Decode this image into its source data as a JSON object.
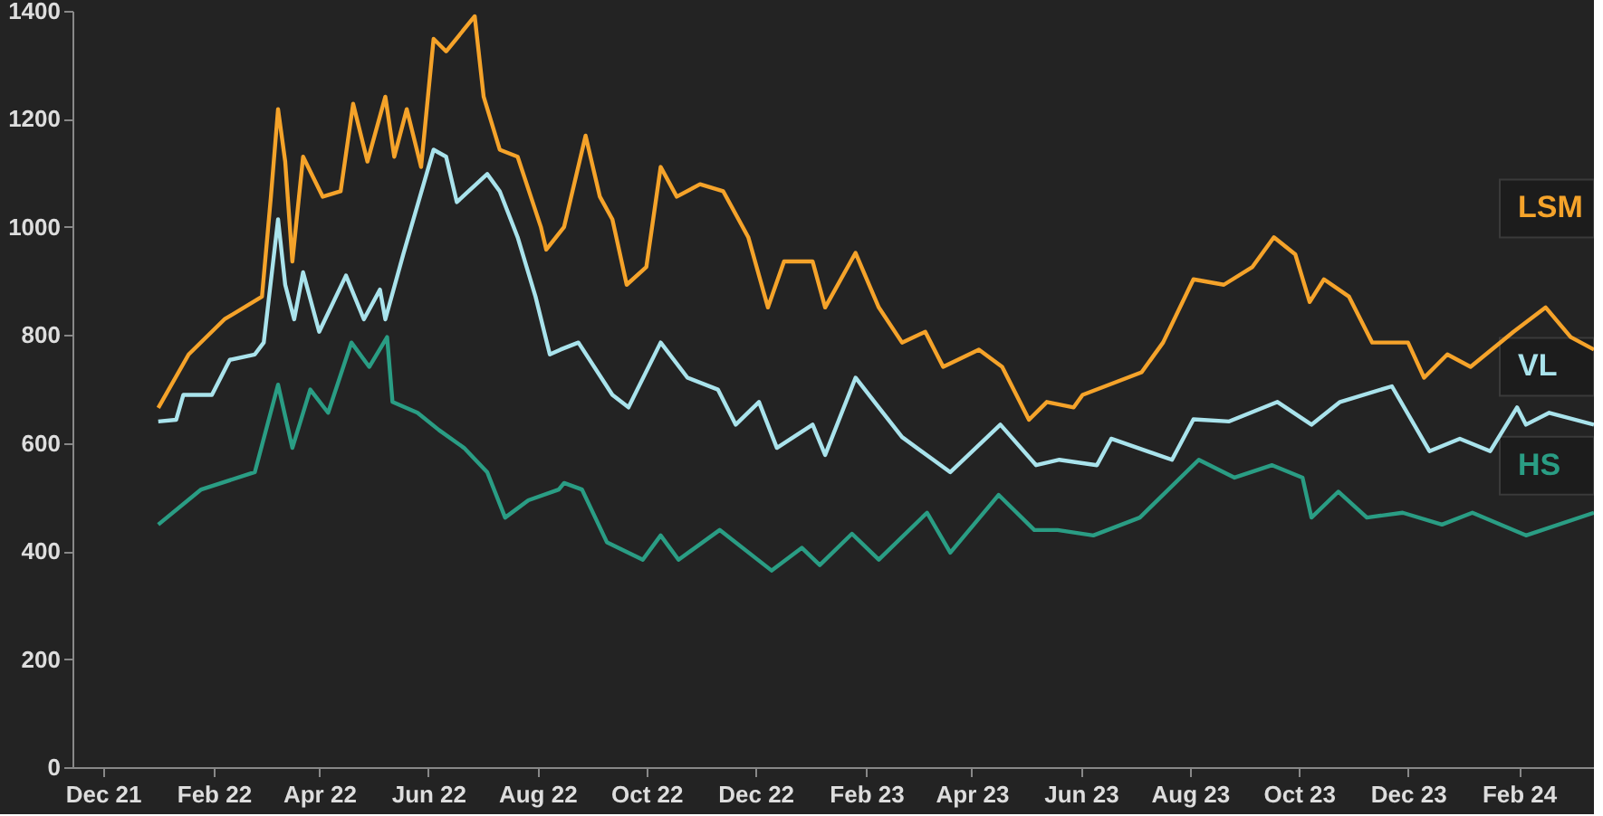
{
  "chart_data": {
    "type": "line",
    "xlim": [
      "2021-11-14",
      "2024-03-14"
    ],
    "ylim": [
      0,
      1400
    ],
    "yticks": [
      0,
      200,
      400,
      600,
      800,
      1000,
      1200,
      1400
    ],
    "xticks": [
      {
        "value": "2021-12-01",
        "label": "Dec 21"
      },
      {
        "value": "2022-02-01",
        "label": "Feb 22"
      },
      {
        "value": "2022-04-01",
        "label": "Apr 22"
      },
      {
        "value": "2022-06-01",
        "label": "Jun 22"
      },
      {
        "value": "2022-08-01",
        "label": "Aug 22"
      },
      {
        "value": "2022-10-01",
        "label": "Oct 22"
      },
      {
        "value": "2022-12-01",
        "label": "Dec 22"
      },
      {
        "value": "2023-02-01",
        "label": "Feb 23"
      },
      {
        "value": "2023-04-01",
        "label": "Apr 23"
      },
      {
        "value": "2023-06-01",
        "label": "Jun 23"
      },
      {
        "value": "2023-08-01",
        "label": "Aug 23"
      },
      {
        "value": "2023-10-01",
        "label": "Oct 23"
      },
      {
        "value": "2023-12-01",
        "label": "Dec 23"
      },
      {
        "value": "2024-02-01",
        "label": "Feb 24"
      }
    ],
    "grid": false,
    "marker": "none",
    "line_style": "solid",
    "series": [
      {
        "name": "LSM",
        "color": "#f5a32a",
        "x": [
          "2022-01-01",
          "2022-01-18",
          "2022-02-07",
          "2022-02-28",
          "2022-03-05",
          "2022-03-09",
          "2022-03-13",
          "2022-03-17",
          "2022-03-23",
          "2022-04-03",
          "2022-04-13",
          "2022-04-20",
          "2022-04-28",
          "2022-05-08",
          "2022-05-13",
          "2022-05-20",
          "2022-05-28",
          "2022-06-04",
          "2022-06-11",
          "2022-06-27",
          "2022-07-02",
          "2022-07-11",
          "2022-07-21",
          "2022-08-03",
          "2022-08-06",
          "2022-08-16",
          "2022-08-28",
          "2022-09-05",
          "2022-09-12",
          "2022-09-20",
          "2022-10-01",
          "2022-10-09",
          "2022-10-18",
          "2022-10-31",
          "2022-11-13",
          "2022-11-27",
          "2022-12-08",
          "2022-12-17",
          "2023-01-02",
          "2023-01-09",
          "2023-01-26",
          "2023-02-08",
          "2023-02-21",
          "2023-03-06",
          "2023-03-16",
          "2023-04-05",
          "2023-04-18",
          "2023-05-03",
          "2023-05-13",
          "2023-05-28",
          "2023-06-02",
          "2023-07-05",
          "2023-07-17",
          "2023-08-03",
          "2023-08-20",
          "2023-09-05",
          "2023-09-17",
          "2023-09-29",
          "2023-10-07",
          "2023-10-15",
          "2023-10-29",
          "2023-11-11",
          "2023-12-01",
          "2023-12-10",
          "2023-12-23",
          "2024-01-05",
          "2024-01-29",
          "2024-02-16",
          "2024-03-01",
          "2024-03-14"
        ],
        "values": [
          665,
          764,
          829,
          871,
          1056,
          1218,
          1121,
          936,
          1130,
          1056,
          1066,
          1228,
          1121,
          1241,
          1130,
          1218,
          1111,
          1348,
          1325,
          1390,
          1241,
          1143,
          1130,
          1000,
          958,
          1000,
          1169,
          1056,
          1014,
          893,
          926,
          1111,
          1056,
          1079,
          1066,
          981,
          851,
          936,
          936,
          851,
          952,
          851,
          786,
          806,
          741,
          773,
          741,
          643,
          676,
          666,
          689,
          731,
          786,
          903,
          893,
          926,
          981,
          949,
          861,
          903,
          871,
          786,
          786,
          721,
          764,
          741,
          806,
          851,
          796,
          773
        ]
      },
      {
        "name": "VL",
        "color": "#a9e3ec",
        "x": [
          "2022-01-01",
          "2022-01-11",
          "2022-01-15",
          "2022-01-31",
          "2022-02-10",
          "2022-02-24",
          "2022-03-01",
          "2022-03-09",
          "2022-03-13",
          "2022-03-18",
          "2022-03-23",
          "2022-04-01",
          "2022-04-16",
          "2022-04-26",
          "2022-05-05",
          "2022-05-08",
          "2022-05-18",
          "2022-06-04",
          "2022-06-11",
          "2022-06-17",
          "2022-07-04",
          "2022-07-11",
          "2022-07-21",
          "2022-07-31",
          "2022-08-08",
          "2022-08-14",
          "2022-08-24",
          "2022-09-12",
          "2022-09-21",
          "2022-10-09",
          "2022-10-24",
          "2022-11-10",
          "2022-11-20",
          "2022-12-03",
          "2022-12-13",
          "2023-01-02",
          "2023-01-09",
          "2023-01-26",
          "2023-02-08",
          "2023-02-21",
          "2023-03-20",
          "2023-04-17",
          "2023-05-07",
          "2023-05-20",
          "2023-06-10",
          "2023-06-18",
          "2023-07-22",
          "2023-08-03",
          "2023-08-23",
          "2023-09-19",
          "2023-10-08",
          "2023-10-24",
          "2023-11-22",
          "2023-12-13",
          "2023-12-30",
          "2024-01-16",
          "2024-01-31",
          "2024-02-05",
          "2024-02-18",
          "2024-03-14"
        ],
        "values": [
          640,
          643,
          689,
          689,
          754,
          764,
          786,
          1014,
          893,
          829,
          916,
          806,
          910,
          829,
          884,
          829,
          949,
          1143,
          1130,
          1046,
          1098,
          1066,
          981,
          871,
          764,
          773,
          786,
          689,
          666,
          786,
          721,
          699,
          634,
          676,
          591,
          634,
          578,
          721,
          666,
          611,
          546,
          634,
          559,
          569,
          559,
          608,
          569,
          644,
          640,
          676,
          634,
          676,
          705,
          585,
          608,
          585,
          666,
          634,
          656,
          634
        ]
      },
      {
        "name": "HS",
        "color": "#2a9d84",
        "x": [
          "2022-01-01",
          "2022-01-25",
          "2022-02-24",
          "2022-03-09",
          "2022-03-17",
          "2022-03-27",
          "2022-04-06",
          "2022-04-19",
          "2022-04-29",
          "2022-05-09",
          "2022-05-12",
          "2022-05-26",
          "2022-06-07",
          "2022-06-21",
          "2022-07-04",
          "2022-07-14",
          "2022-07-27",
          "2022-08-13",
          "2022-08-16",
          "2022-08-26",
          "2022-09-09",
          "2022-09-29",
          "2022-10-09",
          "2022-10-19",
          "2022-11-11",
          "2022-12-10",
          "2022-12-27",
          "2023-01-06",
          "2023-01-24",
          "2023-02-08",
          "2023-03-07",
          "2023-03-20",
          "2023-04-16",
          "2023-05-06",
          "2023-05-19",
          "2023-06-08",
          "2023-07-04",
          "2023-08-06",
          "2023-08-26",
          "2023-09-16",
          "2023-10-03",
          "2023-10-08",
          "2023-10-23",
          "2023-11-08",
          "2023-11-28",
          "2023-12-20",
          "2024-01-06",
          "2024-02-05",
          "2024-03-14"
        ],
        "values": [
          449,
          514,
          546,
          708,
          591,
          699,
          656,
          786,
          741,
          796,
          676,
          656,
          624,
          591,
          546,
          462,
          494,
          514,
          526,
          514,
          416,
          384,
          429,
          384,
          439,
          364,
          406,
          374,
          432,
          384,
          471,
          397,
          504,
          439,
          439,
          429,
          462,
          569,
          536,
          559,
          536,
          462,
          510,
          462,
          471,
          449,
          471,
          429,
          471
        ]
      }
    ]
  }
}
